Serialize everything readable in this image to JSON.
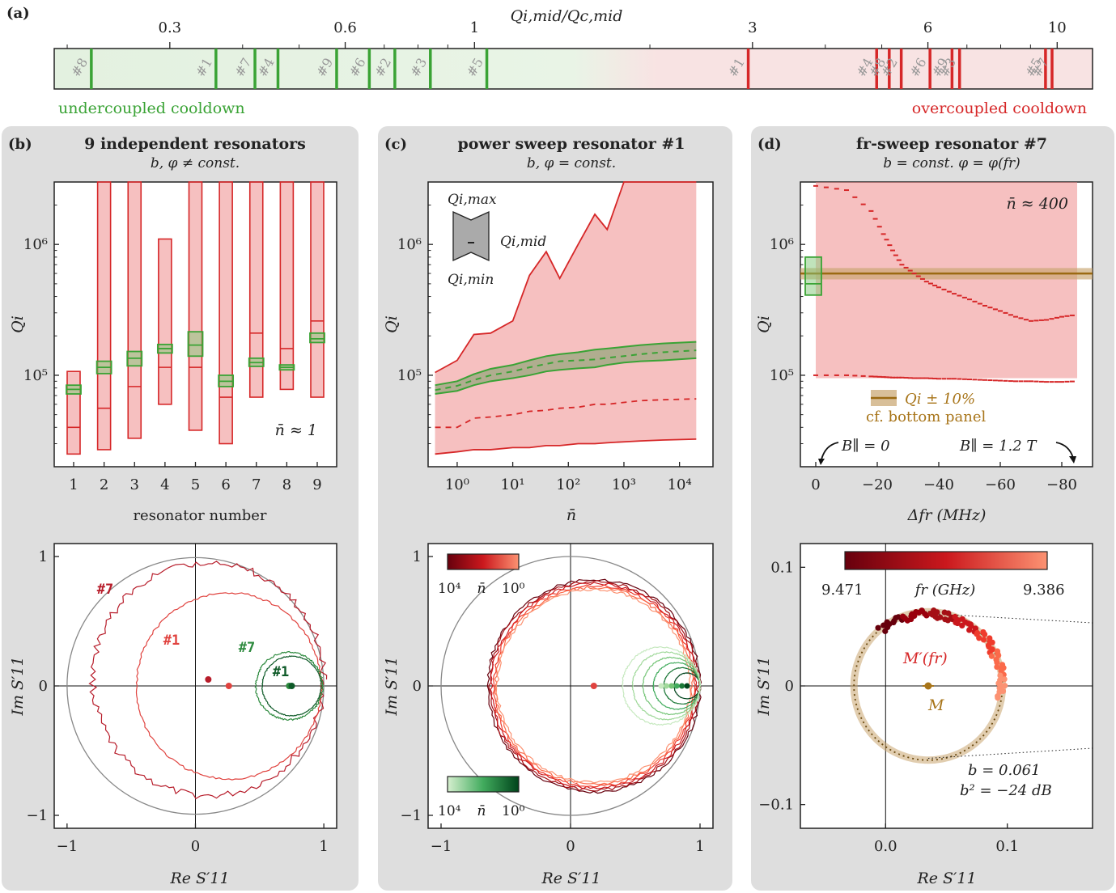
{
  "panel_a": {
    "tag": "(a)",
    "axis_label": "Qi,mid/Qc,mid",
    "ticks": [
      "0.3",
      "0.6",
      "1",
      "3",
      "6",
      "10"
    ],
    "undercoupled_label": "undercoupled cooldown",
    "overcoupled_label": "overcoupled cooldown"
  },
  "panel_b": {
    "tag": "(b)",
    "title": "9 independent resonators",
    "subtitle": "b, φ ≠ const.",
    "ylabel": "Qi",
    "xlabel": "resonator number",
    "annotation": "n̄ ≈ 1",
    "bottom_xlabel": "Re S′11",
    "bottom_ylabel": "Im S′11",
    "labels": [
      "#7",
      "#1",
      "#7",
      "#1"
    ]
  },
  "panel_c": {
    "tag": "(c)",
    "title": "power sweep resonator #1",
    "subtitle": "b, φ = const.",
    "ylabel": "Qi",
    "xlabel": "n̄",
    "legend_max": "Qi,max",
    "legend_mid": "Qi,mid",
    "legend_min": "Qi,min",
    "bottom_xlabel": "Re S′11",
    "bottom_ylabel": "Im S′11",
    "cbar_label": "n̄",
    "cbar_left": "10⁴",
    "cbar_right": "10⁰"
  },
  "panel_d": {
    "tag": "(d)",
    "title": "fr-sweep resonator #7",
    "subtitle": "b = const.   φ = φ(fr)",
    "ylabel": "Qi",
    "xlabel": "Δfr (MHz)",
    "annotation": "n̄ ≈ 400",
    "legend_main": "Qi ± 10%",
    "legend_sub": "cf. bottom panel",
    "b_left": "B∥ = 0",
    "b_right": "B∥ = 1.2 T",
    "bottom_xlabel": "Re S′11",
    "bottom_ylabel": "Im S′11",
    "cbar_label": "fr (GHz)",
    "cbar_left": "9.471",
    "cbar_right": "9.386",
    "label_m_prime": "M′(fr)",
    "label_m": "M",
    "b_value": "b = 0.061",
    "b_sq": "b² = −24 dB"
  },
  "chart_data": [
    {
      "panel": "a",
      "type": "scatter",
      "xlabel": "Qi,mid/Qc,mid",
      "xscale": "log",
      "xlim": [
        0.19,
        11.5
      ],
      "undercoupled": [
        {
          "label": "#8",
          "x": 0.22
        },
        {
          "label": "#1",
          "x": 0.36
        },
        {
          "label": "#7",
          "x": 0.42
        },
        {
          "label": "#4",
          "x": 0.46
        },
        {
          "label": "#9",
          "x": 0.58
        },
        {
          "label": "#6",
          "x": 0.66
        },
        {
          "label": "#2",
          "x": 0.73
        },
        {
          "label": "#3",
          "x": 0.84
        },
        {
          "label": "#5",
          "x": 1.05
        }
      ],
      "overcoupled": [
        {
          "label": "#1",
          "x": 2.95
        },
        {
          "label": "#4",
          "x": 4.9
        },
        {
          "label": "#8",
          "x": 5.15
        },
        {
          "label": "#2",
          "x": 5.4
        },
        {
          "label": "#6",
          "x": 6.05
        },
        {
          "label": "#9",
          "x": 6.6
        },
        {
          "label": "#3",
          "x": 6.8
        },
        {
          "label": "#5",
          "x": 9.55
        },
        {
          "label": "#7",
          "x": 9.8
        }
      ]
    },
    {
      "panel": "b-top",
      "type": "bar",
      "ylabel": "Qi",
      "xlabel": "resonator number",
      "yscale": "log",
      "ylim": [
        20000,
        3000000
      ],
      "categories": [
        1,
        2,
        3,
        4,
        5,
        6,
        7,
        8,
        9
      ],
      "overcoupled_min": [
        25000,
        27000,
        33000,
        60000,
        38000,
        30000,
        68000,
        78000,
        68000
      ],
      "overcoupled_mid": [
        40000,
        56000,
        82000,
        115000,
        115000,
        68000,
        210000,
        160000,
        260000
      ],
      "overcoupled_max": [
        107000,
        3000000,
        3000000,
        1100000,
        3000000,
        3000000,
        3000000,
        3000000,
        3000000
      ],
      "undercoupled_min": [
        72000,
        103000,
        118000,
        148000,
        140000,
        82000,
        117000,
        110000,
        178000
      ],
      "undercoupled_mid": [
        78000,
        115000,
        135000,
        160000,
        170000,
        90000,
        125000,
        115000,
        190000
      ],
      "undercoupled_max": [
        84000,
        128000,
        152000,
        172000,
        215000,
        100000,
        135000,
        120000,
        210000
      ]
    },
    {
      "panel": "c-top",
      "type": "line",
      "ylabel": "Qi",
      "xlabel": "n̄",
      "xscale": "log",
      "yscale": "log",
      "xlim": [
        0.3,
        40000
      ],
      "ylim": [
        20000,
        3000000
      ],
      "x": [
        0.4,
        1,
        2,
        4,
        10,
        20,
        40,
        70,
        150,
        300,
        500,
        1000,
        2000,
        5000,
        20000
      ],
      "overcoupled_max": [
        105000,
        130000,
        205000,
        210000,
        260000,
        580000,
        880000,
        550000,
        1000000,
        1700000,
        1300000,
        3000000,
        3000000,
        3000000,
        3000000
      ],
      "overcoupled_mid": [
        40000,
        40000,
        47000,
        48000,
        50000,
        53000,
        54000,
        56000,
        57000,
        60000,
        60000,
        62000,
        64000,
        65000,
        66000
      ],
      "overcoupled_min": [
        25000,
        26000,
        27000,
        27000,
        28000,
        28000,
        29000,
        29000,
        30000,
        30000,
        30500,
        31000,
        31500,
        32000,
        32500
      ],
      "undercoupled_min": [
        72000,
        76000,
        84000,
        90000,
        95000,
        100000,
        107000,
        110000,
        113000,
        115000,
        120000,
        125000,
        128000,
        130000,
        135000
      ],
      "undercoupled_mid": [
        77000,
        83000,
        92000,
        100000,
        107000,
        115000,
        122000,
        128000,
        130000,
        132000,
        136000,
        140000,
        145000,
        150000,
        155000
      ],
      "undercoupled_max": [
        84000,
        90000,
        102000,
        112000,
        120000,
        130000,
        140000,
        145000,
        150000,
        157000,
        160000,
        165000,
        170000,
        175000,
        180000
      ]
    },
    {
      "panel": "d-top",
      "type": "scatter",
      "ylabel": "Qi",
      "xlabel": "Δfr (MHz)",
      "yscale": "log",
      "xlim": [
        5,
        -90
      ],
      "ylim": [
        20000,
        3000000
      ],
      "reference_Qi": 600000,
      "x": [
        0,
        -10,
        -18,
        -22,
        -25,
        -28,
        -32,
        -36,
        -40,
        -45,
        -50,
        -55,
        -60,
        -65,
        -70,
        -75,
        -80,
        -85
      ],
      "overcoupled_mid": [
        2800000,
        2600000,
        1800000,
        1200000,
        900000,
        700000,
        600000,
        520000,
        470000,
        420000,
        380000,
        340000,
        310000,
        280000,
        260000,
        265000,
        280000,
        290000
      ],
      "overcoupled_min": [
        100000,
        100000,
        98000,
        97000,
        96000,
        96000,
        95000,
        95000,
        94000,
        94000,
        93000,
        92000,
        91000,
        90000,
        90000,
        89000,
        89000,
        90000
      ],
      "undercoupled_min": 410000,
      "undercoupled_mid": 500000,
      "undercoupled_max": 800000
    },
    {
      "panel": "b-bottom",
      "type": "line",
      "xlabel": "Re S′11",
      "ylabel": "Im S′11",
      "xlim": [
        -1.1,
        1.1
      ],
      "ylim": [
        -1.1,
        1.1
      ],
      "series": [
        {
          "name": "#7",
          "center": [
            0.1,
            0.05
          ],
          "radius": 0.9
        },
        {
          "name": "#1",
          "center": [
            0.26,
            0.0
          ],
          "radius": 0.72
        },
        {
          "name": "#7",
          "center": [
            0.73,
            0.0
          ],
          "radius": 0.26
        },
        {
          "name": "#1",
          "center": [
            0.75,
            0.0
          ],
          "radius": 0.23
        }
      ]
    },
    {
      "panel": "c-bottom",
      "type": "line",
      "xlabel": "Re S′11",
      "ylabel": "Im S′11",
      "xlim": [
        -1.1,
        1.1
      ],
      "ylim": [
        -1.1,
        1.1
      ],
      "overcoupled_center": [
        0.18,
        0.0
      ],
      "overcoupled_radius": 0.82,
      "undercoupled_center": [
        0.72,
        0.0
      ],
      "undercoupled_radius": [
        0.1,
        0.14,
        0.18,
        0.22,
        0.26,
        0.3
      ]
    },
    {
      "panel": "d-bottom",
      "type": "scatter",
      "xlabel": "Re S′11",
      "ylabel": "Im S′11",
      "xlim": [
        -0.07,
        0.17
      ],
      "ylim": [
        -0.12,
        0.12
      ],
      "M": [
        0.035,
        0.0
      ],
      "radius": 0.061
    }
  ]
}
